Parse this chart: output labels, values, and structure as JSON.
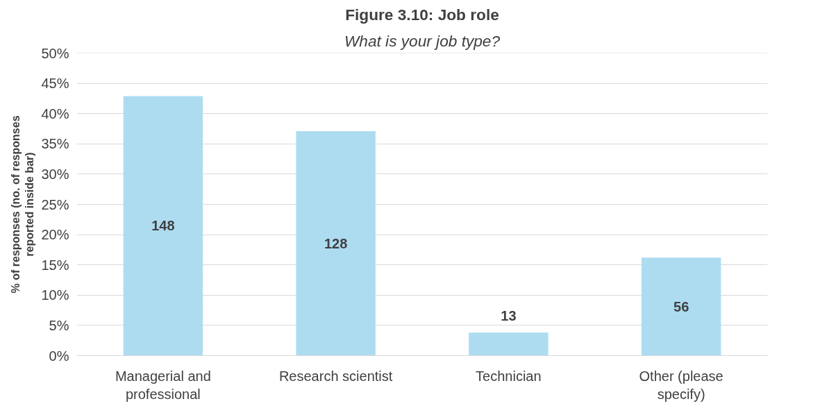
{
  "chart_data": {
    "type": "bar",
    "title": "Figure 3.10: Job role",
    "subtitle": "What is your job type?",
    "ylabel": "% of responses (no. of responses reported inside bar)",
    "categories": [
      "Managerial and professional",
      "Research scientist",
      "Technician",
      "Other (please specify)"
    ],
    "values": [
      42.9,
      37.1,
      3.8,
      16.2
    ],
    "annotations": [
      "148",
      "128",
      "13",
      "56"
    ],
    "color": "#addcf1",
    "ylim": [
      0,
      50
    ],
    "yticks": [
      {
        "value": 0,
        "label": "0%"
      },
      {
        "value": 5,
        "label": "5%"
      },
      {
        "value": 10,
        "label": "10%"
      },
      {
        "value": 15,
        "label": "15%"
      },
      {
        "value": 20,
        "label": "20%"
      },
      {
        "value": 25,
        "label": "25%"
      },
      {
        "value": 30,
        "label": "30%"
      },
      {
        "value": 35,
        "label": "35%"
      },
      {
        "value": 40,
        "label": "40%"
      },
      {
        "value": 45,
        "label": "45%"
      },
      {
        "value": 50,
        "label": "50%"
      }
    ],
    "grid": "y"
  }
}
